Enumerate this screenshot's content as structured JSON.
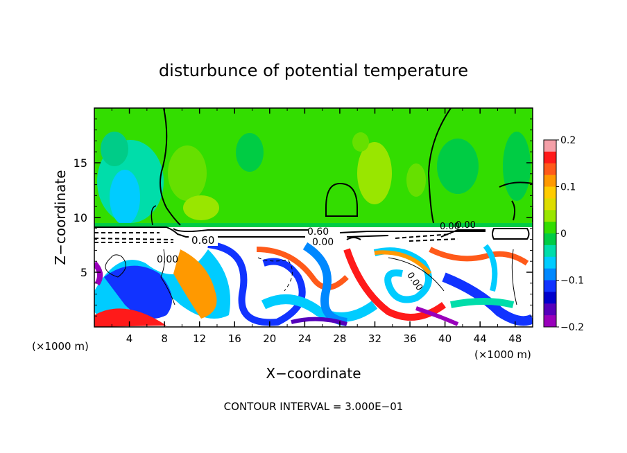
{
  "chart_data": {
    "type": "heatmap",
    "title": "disturbunce of potential temperature",
    "xlabel": "X−coordinate",
    "ylabel": "Z−coordinate",
    "x_unit": "(×1000 m)",
    "x_unit_right": "(×1000 m)",
    "xlim": [
      0,
      50
    ],
    "ylim": [
      0,
      20
    ],
    "x_ticks": [
      "4",
      "8",
      "12",
      "16",
      "20",
      "24",
      "28",
      "32",
      "36",
      "40",
      "44",
      "48"
    ],
    "y_ticks": [
      "5",
      "10",
      "15"
    ],
    "colorbar": {
      "range": [
        -0.2,
        0.2
      ],
      "tick_labels": [
        "0.2",
        "0.1",
        "0",
        "−0.1",
        "−0.2"
      ],
      "colors": [
        "#f4a0a8",
        "#ff1a1a",
        "#ff5a1a",
        "#ff9900",
        "#ffcc00",
        "#dddd00",
        "#99e600",
        "#33dd00",
        "#00cc44",
        "#00ddaa",
        "#00ccff",
        "#0088ff",
        "#1133ff",
        "#0000cc",
        "#5500bb",
        "#9900bb"
      ]
    },
    "contour_labels": [
      "0.60",
      "0.00",
      "0.60",
      "0.00",
      "0.00",
      "0.00",
      "0.00"
    ],
    "annotation": "CONTOUR INTERVAL = 3.000E−01"
  }
}
